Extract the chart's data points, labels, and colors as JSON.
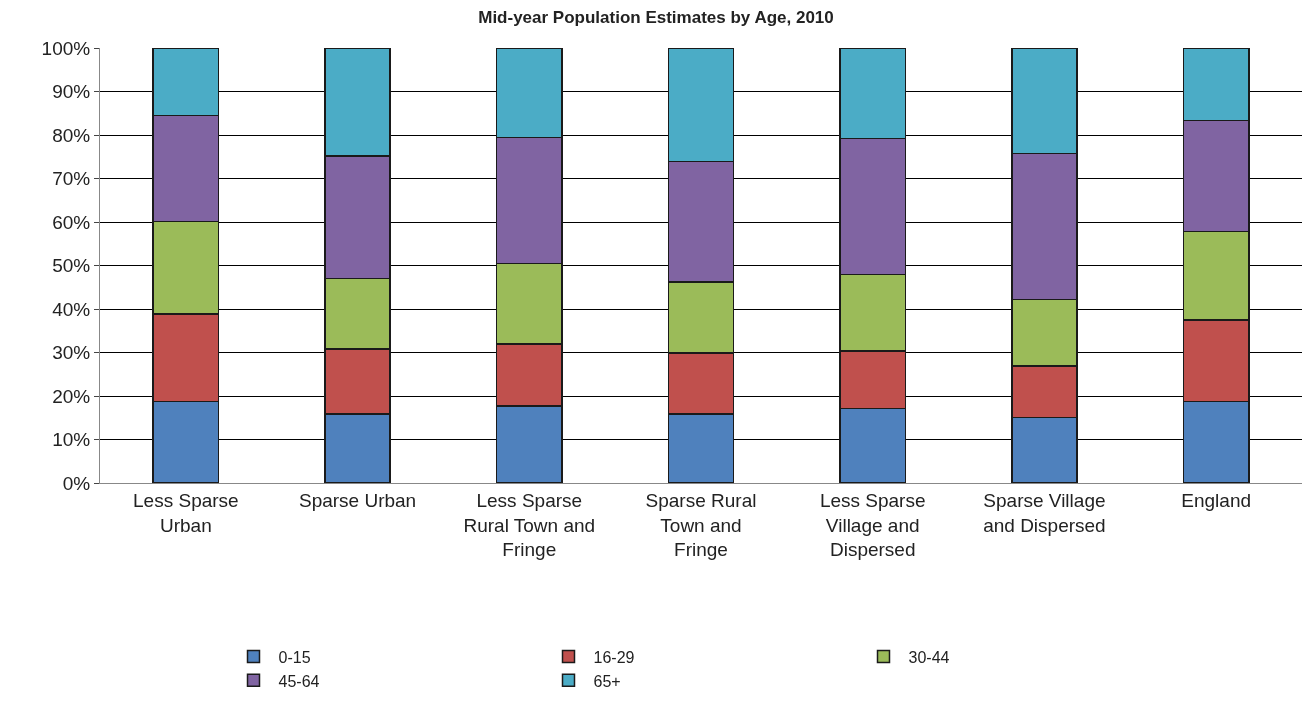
{
  "chart_data": {
    "type": "bar",
    "stacked": true,
    "title": "Mid-year Population Estimates by Age, 2010",
    "categories": [
      "Less Sparse Urban",
      "Sparse Urban",
      "Less Sparse Rural Town and Fringe",
      "Sparse Rural Town and Fringe",
      "Less Sparse Village and Dispersed",
      "Sparse Village and Dispersed",
      "England"
    ],
    "series": [
      {
        "name": "0-15",
        "color": "#4f81bd",
        "values": [
          18.7,
          15.9,
          17.7,
          15.9,
          17.1,
          15.1,
          18.7
        ]
      },
      {
        "name": "16-29",
        "color": "#c0504d",
        "values": [
          20.2,
          14.9,
          14.3,
          14.0,
          13.2,
          11.8,
          18.8
        ]
      },
      {
        "name": "30-44",
        "color": "#9bbb59",
        "values": [
          21.2,
          16.2,
          18.5,
          16.3,
          17.6,
          15.3,
          20.3
        ]
      },
      {
        "name": "45-64",
        "color": "#8064a2",
        "values": [
          24.4,
          28.2,
          28.9,
          27.7,
          31.3,
          33.6,
          25.5
        ]
      },
      {
        "name": "65+",
        "color": "#4bacc6",
        "values": [
          15.5,
          24.8,
          20.6,
          26.1,
          20.8,
          24.2,
          16.7
        ]
      }
    ],
    "ylim": [
      0,
      100
    ],
    "yticks": [
      {
        "value": 0,
        "label": "0%"
      },
      {
        "value": 10,
        "label": "10%"
      },
      {
        "value": 20,
        "label": "20%"
      },
      {
        "value": 30,
        "label": "30%"
      },
      {
        "value": 40,
        "label": "40%"
      },
      {
        "value": 50,
        "label": "50%"
      },
      {
        "value": 60,
        "label": "60%"
      },
      {
        "value": 70,
        "label": "70%"
      },
      {
        "value": 80,
        "label": "80%"
      },
      {
        "value": 90,
        "label": "90%"
      },
      {
        "value": 100,
        "label": "100%"
      }
    ],
    "grid": "y",
    "legend": "bottom"
  }
}
